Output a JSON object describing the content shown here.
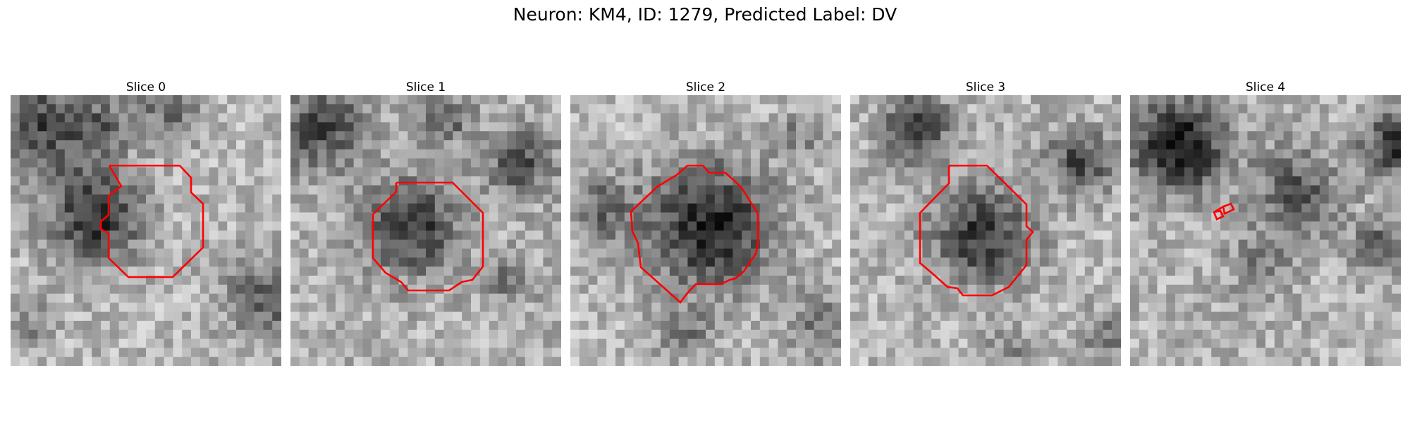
{
  "figure": {
    "title": "Neuron: KM4, ID: 1279, Predicted Label: DV",
    "panels": [
      {
        "label": "Slice 0"
      },
      {
        "label": "Slice 1"
      },
      {
        "label": "Slice 2"
      },
      {
        "label": "Slice 3"
      },
      {
        "label": "Slice 4"
      }
    ],
    "image_grid": 30,
    "colormap": "grayscale",
    "contour_color": "#ff0000"
  }
}
